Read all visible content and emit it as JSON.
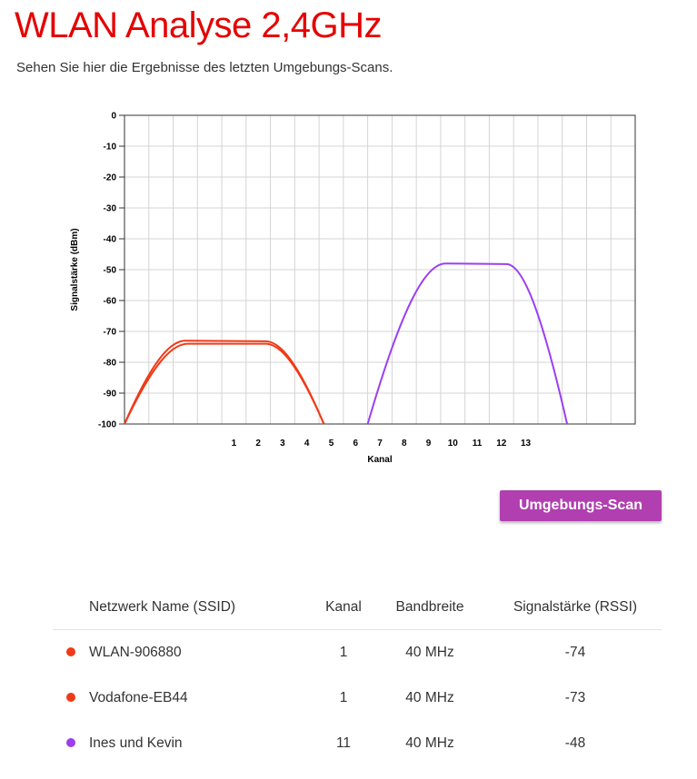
{
  "page": {
    "title": "WLAN Analyse 2,4GHz",
    "subtitle": "Sehen Sie hier die Ergebnisse des letzten Umgebungs-Scans."
  },
  "scan_button_label": "Umgebungs-Scan",
  "table": {
    "headers": [
      "Netzwerk Name (SSID)",
      "Kanal",
      "Bandbreite",
      "Signalstärke (RSSI)"
    ],
    "rows": [
      {
        "ssid": "WLAN-906880",
        "channel": "1",
        "bandwidth": "40 MHz",
        "rssi": "-74",
        "color": "#f03a17"
      },
      {
        "ssid": "Vodafone-EB44",
        "channel": "1",
        "bandwidth": "40 MHz",
        "rssi": "-73",
        "color": "#f03a17"
      },
      {
        "ssid": "Ines und Kevin",
        "channel": "11",
        "bandwidth": "40 MHz",
        "rssi": "-48",
        "color": "#9b3ff3"
      }
    ]
  },
  "chart_data": {
    "type": "line",
    "xlabel": "Kanal",
    "ylabel": "Signalstärke (dBm)",
    "ylim": [
      -100,
      0
    ],
    "yticks": [
      0,
      -10,
      -20,
      -30,
      -40,
      -50,
      -60,
      -70,
      -80,
      -90,
      -100
    ],
    "xlim": [
      -3.5,
      17.5
    ],
    "xticks": [
      1,
      2,
      3,
      4,
      5,
      6,
      7,
      8,
      9,
      10,
      11,
      12,
      13
    ],
    "grid": true,
    "series": [
      {
        "color": "#f03a17",
        "points": [
          [
            -3.5,
            -100
          ],
          [
            -0.9,
            -74
          ],
          [
            2.3,
            -74
          ],
          [
            4.7,
            -100
          ]
        ]
      },
      {
        "color": "#f03a17",
        "points": [
          [
            -3.5,
            -100
          ],
          [
            -1.0,
            -73
          ],
          [
            2.3,
            -73.2
          ],
          [
            4.7,
            -100
          ]
        ]
      },
      {
        "color": "#9b3ff3",
        "points": [
          [
            6.5,
            -100
          ],
          [
            9.7,
            -48
          ],
          [
            12.2,
            -48.2
          ],
          [
            14.7,
            -100
          ]
        ]
      }
    ]
  }
}
